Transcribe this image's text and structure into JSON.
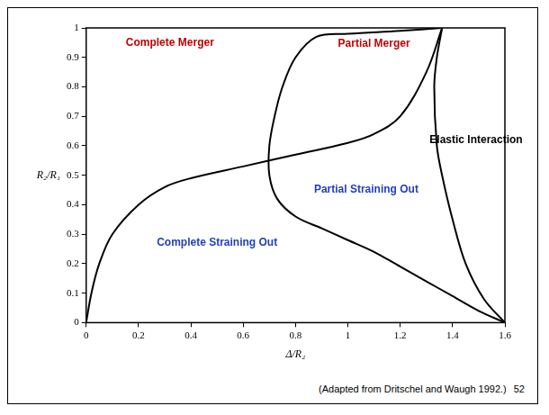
{
  "chart_data": {
    "type": "line",
    "x_label": "Δ/R₂",
    "y_label": "R₂/R₁",
    "xlim": [
      0,
      1.6
    ],
    "ylim": [
      0,
      1
    ],
    "xticks": [
      0,
      0.2,
      0.4,
      0.6,
      0.8,
      1,
      1.2,
      1.4,
      1.6
    ],
    "yticks": [
      0,
      0.1,
      0.2,
      0.3,
      0.4,
      0.5,
      0.6,
      0.7,
      0.8,
      0.9,
      1
    ],
    "grid": false,
    "series": [
      {
        "color": "#000000",
        "x": [
          0,
          0.02,
          0.05,
          0.1,
          0.2,
          0.3,
          0.4,
          0.6,
          0.8,
          1.0,
          1.1,
          1.2,
          1.3,
          1.36
        ],
        "values": [
          0,
          0.1,
          0.2,
          0.3,
          0.4,
          0.46,
          0.49,
          0.53,
          0.57,
          0.61,
          0.64,
          0.7,
          0.85,
          1.0
        ]
      },
      {
        "color": "#000000",
        "x": [
          1.36,
          1.2,
          1.0,
          0.88,
          0.8,
          0.75,
          0.72,
          0.7,
          0.7,
          0.73,
          0.8,
          0.9,
          1.0,
          1.1,
          1.2,
          1.3,
          1.4,
          1.5,
          1.6
        ],
        "values": [
          1.0,
          0.99,
          0.98,
          0.97,
          0.9,
          0.8,
          0.7,
          0.6,
          0.5,
          0.42,
          0.36,
          0.32,
          0.28,
          0.24,
          0.19,
          0.14,
          0.09,
          0.04,
          0.0
        ]
      },
      {
        "color": "#000000",
        "x": [
          1.36,
          1.34,
          1.33,
          1.34,
          1.36,
          1.4,
          1.45,
          1.52,
          1.6
        ],
        "values": [
          1.0,
          0.9,
          0.8,
          0.6,
          0.5,
          0.35,
          0.2,
          0.08,
          0.0
        ]
      }
    ],
    "annotations": [
      {
        "text": "Complete Merger",
        "x": 0.32,
        "y": 0.95,
        "color": "#c00000"
      },
      {
        "text": "Partial Merger",
        "x": 1.1,
        "y": 0.945,
        "color": "#c00000"
      },
      {
        "text": "Elastic Interaction",
        "x": 1.49,
        "y": 0.62,
        "color": "#000000"
      },
      {
        "text": "Complete Straining Out",
        "x": 0.5,
        "y": 0.27,
        "color": "#1f3fbf"
      },
      {
        "text": "Partial Straining Out",
        "x": 1.07,
        "y": 0.45,
        "color": "#1f3fbf"
      }
    ],
    "caption": "(Adapted from Dritschel and Waugh 1992.)",
    "page_number": "52"
  }
}
